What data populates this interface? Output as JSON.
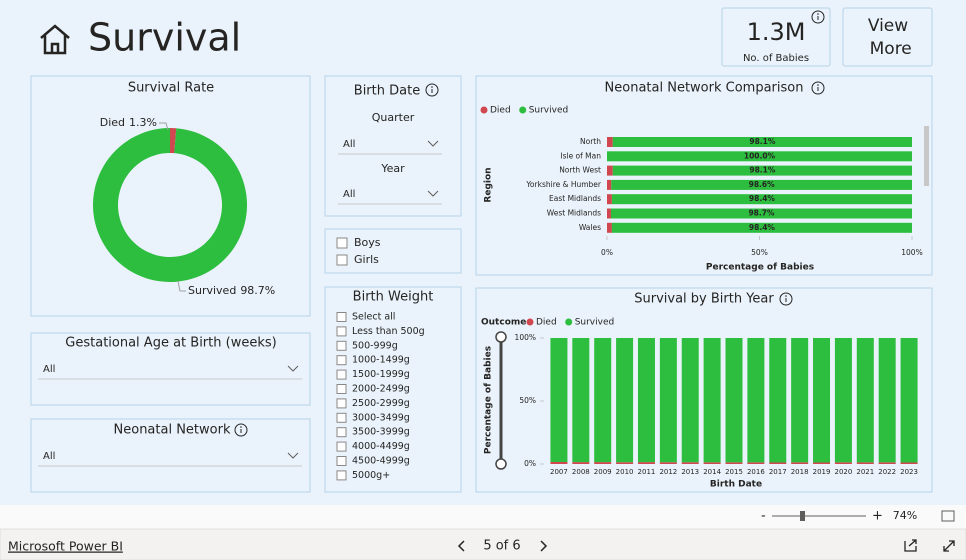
{
  "header": {
    "title": "Survival",
    "kpi": {
      "value": "1.3M",
      "label": "No. of Babies"
    },
    "button": "View More"
  },
  "filters": {
    "birth_date": {
      "title": "Birth Date",
      "quarter": {
        "label": "Quarter",
        "value": "All"
      },
      "year": {
        "label": "Year",
        "value": "All"
      }
    },
    "gestational_age": {
      "title": "Gestational Age at Birth (weeks)",
      "value": "All"
    },
    "neonatal_network": {
      "title": "Neonatal Network",
      "value": "All"
    },
    "sex": [
      "Boys",
      "Girls"
    ],
    "birth_weight": {
      "title": "Birth Weight",
      "options": [
        "Select all",
        "Less than 500g",
        "500-999g",
        "1000-1499g",
        "1500-1999g",
        "2000-2499g",
        "2500-2999g",
        "3000-3499g",
        "3500-3999g",
        "4000-4499g",
        "4500-4999g",
        "5000g+"
      ]
    }
  },
  "chart_data": [
    {
      "type": "pie",
      "donut": true,
      "title": "Survival Rate",
      "categories": [
        "Died",
        "Survived"
      ],
      "values": [
        1.3,
        98.7
      ],
      "value_labels": [
        "1.3%",
        "98.7%"
      ],
      "colors": [
        "#d0474f",
        "#2dbd3f"
      ]
    },
    {
      "type": "bar",
      "orientation": "horizontal",
      "stacked": true,
      "title": "Neonatal Network Comparison",
      "categories": [
        "North",
        "Isle of Man",
        "North West",
        "Yorkshire & Humber",
        "East Midlands",
        "West Midlands",
        "Wales"
      ],
      "series": [
        {
          "name": "Died",
          "color": "#d0474f",
          "values": [
            1.9,
            0,
            1.9,
            1.4,
            1.6,
            1.3,
            1.6
          ]
        },
        {
          "name": "Survived",
          "color": "#2dbd3f",
          "values": [
            98.1,
            100,
            98.1,
            98.6,
            98.4,
            98.7,
            98.4
          ],
          "value_labels": [
            "98.1%",
            "100.0%",
            "98.1%",
            "98.6%",
            "98.4%",
            "98.7%",
            "98.4%"
          ]
        }
      ],
      "xlim": [
        0,
        100
      ],
      "xticks": [
        {
          "value": 0,
          "label": "0%"
        },
        {
          "value": 50,
          "label": "50%"
        },
        {
          "value": 100,
          "label": "100%"
        }
      ],
      "xlabel": "Percentage of Babies",
      "ylabel": "Region"
    },
    {
      "type": "bar",
      "orientation": "vertical",
      "stacked": true,
      "title": "Survival by Birth Year",
      "legend_title": "Outcome",
      "categories": [
        "2007",
        "2008",
        "2009",
        "2010",
        "2011",
        "2012",
        "2013",
        "2014",
        "2015",
        "2016",
        "2017",
        "2018",
        "2019",
        "2020",
        "2021",
        "2022",
        "2023"
      ],
      "series": [
        {
          "name": "Died",
          "color": "#d0474f",
          "values": [
            1.6,
            1.5,
            1.5,
            1.4,
            1.5,
            1.4,
            1.4,
            1.3,
            1.3,
            1.3,
            1.2,
            1.3,
            1.2,
            1.3,
            1.3,
            1.3,
            1.2
          ]
        },
        {
          "name": "Survived",
          "color": "#2dbd3f",
          "values": [
            98.4,
            98.5,
            98.5,
            98.6,
            98.5,
            98.6,
            98.6,
            98.7,
            98.7,
            98.7,
            98.8,
            98.7,
            98.8,
            98.7,
            98.7,
            98.7,
            98.8
          ]
        }
      ],
      "ylim": [
        0,
        100
      ],
      "yticks": [
        {
          "value": 0,
          "label": "0%"
        },
        {
          "value": 50,
          "label": "50%"
        },
        {
          "value": 100,
          "label": "100%"
        }
      ],
      "xlabel": "Birth Date",
      "ylabel": "Percentage of Babies"
    }
  ],
  "footer": {
    "brand": "Microsoft Power BI",
    "page": "5 of 6",
    "zoom": "74%"
  }
}
